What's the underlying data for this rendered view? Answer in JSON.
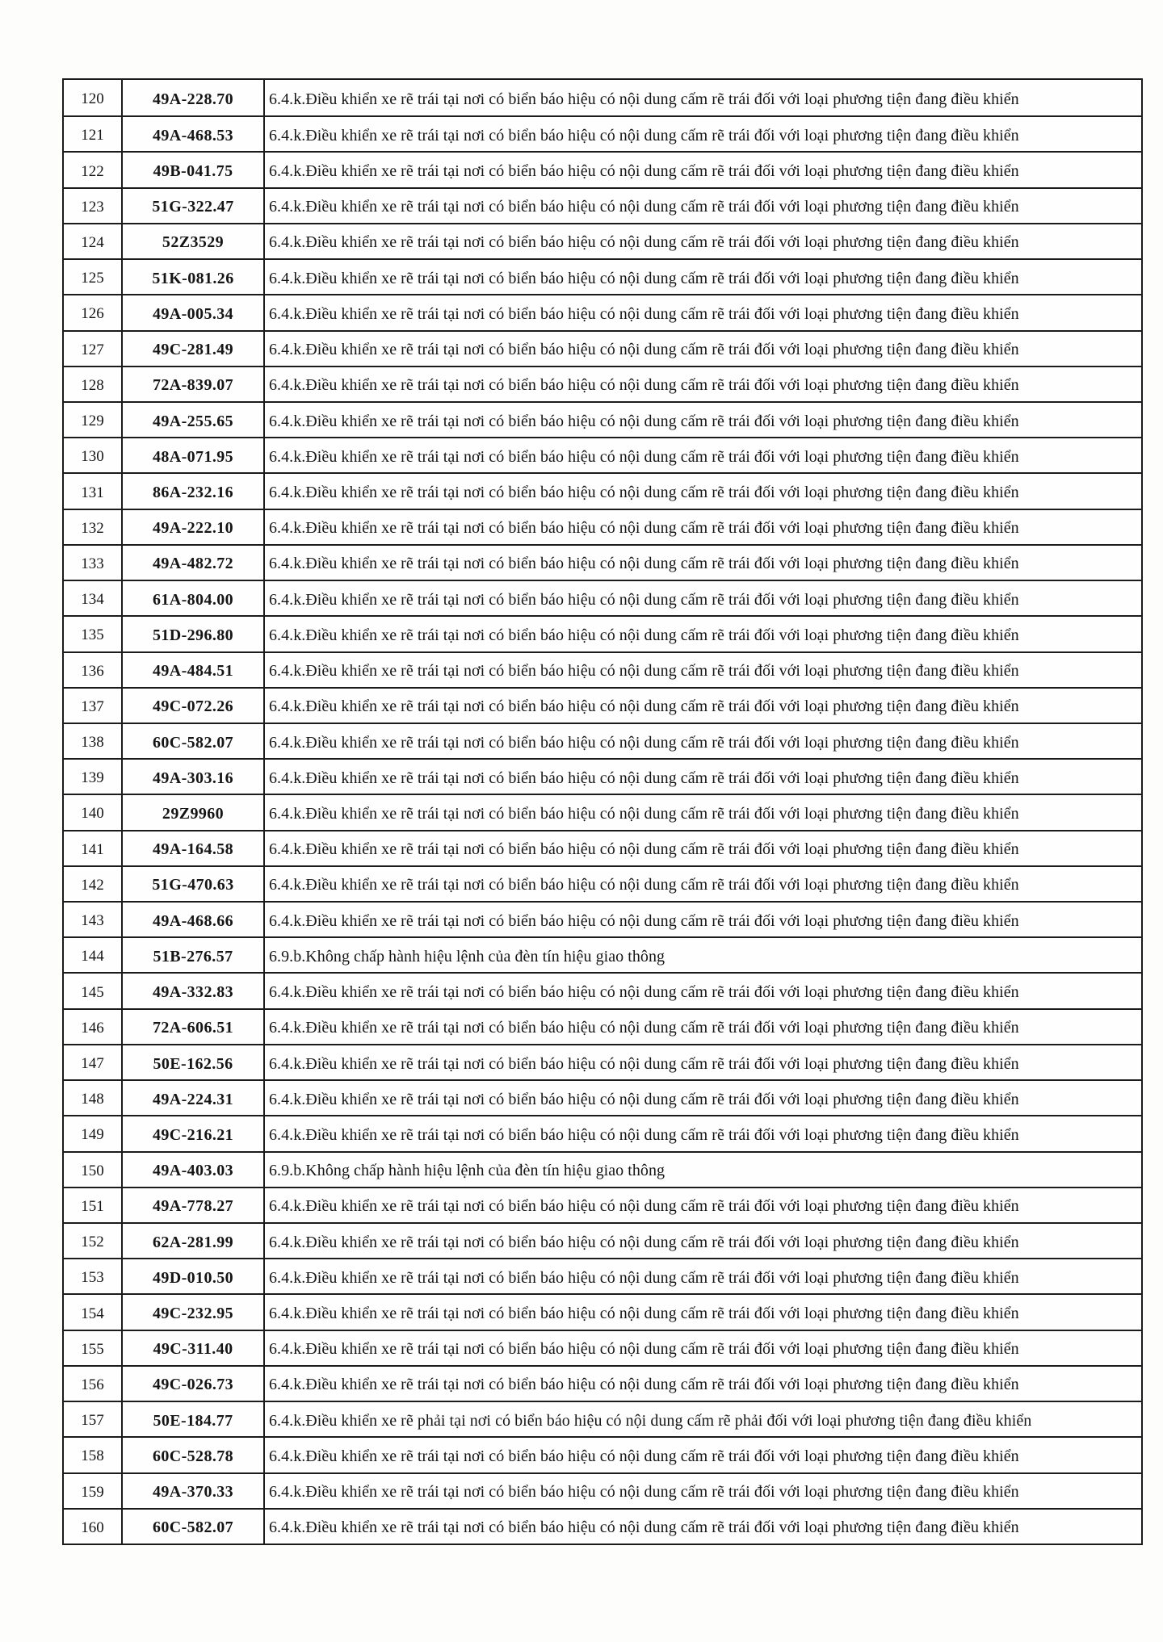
{
  "table": {
    "rows": [
      {
        "no": "120",
        "plate": "49A-228.70",
        "violation": "6.4.k.Điều khiển xe rẽ trái tại nơi có biển báo hiệu có nội dung cấm rẽ trái đối với loại phương tiện đang điều khiển"
      },
      {
        "no": "121",
        "plate": "49A-468.53",
        "violation": "6.4.k.Điều khiển xe rẽ trái tại nơi có biển báo hiệu có nội dung cấm rẽ trái đối với loại phương tiện đang điều khiển"
      },
      {
        "no": "122",
        "plate": "49B-041.75",
        "violation": "6.4.k.Điều khiển xe rẽ trái tại nơi có biển báo hiệu có nội dung cấm rẽ trái đối với loại phương tiện đang điều khiển"
      },
      {
        "no": "123",
        "plate": "51G-322.47",
        "violation": "6.4.k.Điều khiển xe rẽ trái tại nơi có biển báo hiệu có nội dung cấm rẽ trái đối với loại phương tiện đang điều khiển"
      },
      {
        "no": "124",
        "plate": "52Z3529",
        "violation": "6.4.k.Điều khiển xe rẽ trái tại nơi có biển báo hiệu có nội dung cấm rẽ trái đối với loại phương tiện đang điều khiển"
      },
      {
        "no": "125",
        "plate": "51K-081.26",
        "violation": "6.4.k.Điều khiển xe rẽ trái tại nơi có biển báo hiệu có nội dung cấm rẽ trái đối với loại phương tiện đang điều khiển"
      },
      {
        "no": "126",
        "plate": "49A-005.34",
        "violation": "6.4.k.Điều khiển xe rẽ trái tại nơi có biển báo hiệu có nội dung cấm rẽ trái đối với loại phương tiện đang điều khiển"
      },
      {
        "no": "127",
        "plate": "49C-281.49",
        "violation": "6.4.k.Điều khiển xe rẽ trái tại nơi có biển báo hiệu có nội dung cấm rẽ trái đối với loại phương tiện đang điều khiển"
      },
      {
        "no": "128",
        "plate": "72A-839.07",
        "violation": "6.4.k.Điều khiển xe rẽ trái tại nơi có biển báo hiệu có nội dung cấm rẽ trái đối với loại phương tiện đang điều khiển"
      },
      {
        "no": "129",
        "plate": "49A-255.65",
        "violation": "6.4.k.Điều khiển xe rẽ trái tại nơi có biển báo hiệu có nội dung cấm rẽ trái đối với loại phương tiện đang điều khiển"
      },
      {
        "no": "130",
        "plate": "48A-071.95",
        "violation": "6.4.k.Điều khiển xe rẽ trái tại nơi có biển báo hiệu có nội dung cấm rẽ trái đối với loại phương tiện đang điều khiển"
      },
      {
        "no": "131",
        "plate": "86A-232.16",
        "violation": "6.4.k.Điều khiển xe rẽ trái tại nơi có biển báo hiệu có nội dung cấm rẽ trái đối với loại phương tiện đang điều khiển"
      },
      {
        "no": "132",
        "plate": "49A-222.10",
        "violation": "6.4.k.Điều khiển xe rẽ trái tại nơi có biển báo hiệu có nội dung cấm rẽ trái đối với loại phương tiện đang điều khiển"
      },
      {
        "no": "133",
        "plate": "49A-482.72",
        "violation": "6.4.k.Điều khiển xe rẽ trái tại nơi có biển báo hiệu có nội dung cấm rẽ trái đối với loại phương tiện đang điều khiển"
      },
      {
        "no": "134",
        "plate": "61A-804.00",
        "violation": "6.4.k.Điều khiển xe rẽ trái tại nơi có biển báo hiệu có nội dung cấm rẽ trái đối với loại phương tiện đang điều khiển"
      },
      {
        "no": "135",
        "plate": "51D-296.80",
        "violation": "6.4.k.Điều khiển xe rẽ trái tại nơi có biển báo hiệu có nội dung cấm rẽ trái đối với loại phương tiện đang điều khiển"
      },
      {
        "no": "136",
        "plate": "49A-484.51",
        "violation": "6.4.k.Điều khiển xe rẽ trái tại nơi có biển báo hiệu có nội dung cấm rẽ trái đối với loại phương tiện đang điều khiển"
      },
      {
        "no": "137",
        "plate": "49C-072.26",
        "violation": "6.4.k.Điều khiển xe rẽ trái tại nơi có biển báo hiệu có nội dung cấm rẽ trái đối với loại phương tiện đang điều khiển"
      },
      {
        "no": "138",
        "plate": "60C-582.07",
        "violation": "6.4.k.Điều khiển xe rẽ trái tại nơi có biển báo hiệu có nội dung cấm rẽ trái đối với loại phương tiện đang điều khiển"
      },
      {
        "no": "139",
        "plate": "49A-303.16",
        "violation": "6.4.k.Điều khiển xe rẽ trái tại nơi có biển báo hiệu có nội dung cấm rẽ trái đối với loại phương tiện đang điều khiển"
      },
      {
        "no": "140",
        "plate": "29Z9960",
        "violation": "6.4.k.Điều khiển xe rẽ trái tại nơi có biển báo hiệu có nội dung cấm rẽ trái đối với loại phương tiện đang điều khiển"
      },
      {
        "no": "141",
        "plate": "49A-164.58",
        "violation": "6.4.k.Điều khiển xe rẽ trái tại nơi có biển báo hiệu có nội dung cấm rẽ trái đối với loại phương tiện đang điều khiển"
      },
      {
        "no": "142",
        "plate": "51G-470.63",
        "violation": "6.4.k.Điều khiển xe rẽ trái tại nơi có biển báo hiệu có nội dung cấm rẽ trái đối với loại phương tiện đang điều khiển"
      },
      {
        "no": "143",
        "plate": "49A-468.66",
        "violation": "6.4.k.Điều khiển xe rẽ trái tại nơi có biển báo hiệu có nội dung cấm rẽ trái đối với loại phương tiện đang điều khiển"
      },
      {
        "no": "144",
        "plate": "51B-276.57",
        "violation": "6.9.b.Không chấp hành hiệu lệnh của đèn tín hiệu giao thông"
      },
      {
        "no": "145",
        "plate": "49A-332.83",
        "violation": "6.4.k.Điều khiển xe rẽ trái tại nơi có biển báo hiệu có nội dung cấm rẽ trái đối với loại phương tiện đang điều khiển"
      },
      {
        "no": "146",
        "plate": "72A-606.51",
        "violation": "6.4.k.Điều khiển xe rẽ trái tại nơi có biển báo hiệu có nội dung cấm rẽ trái đối với loại phương tiện đang điều khiển"
      },
      {
        "no": "147",
        "plate": "50E-162.56",
        "violation": "6.4.k.Điều khiển xe rẽ trái tại nơi có biển báo hiệu có nội dung cấm rẽ trái đối với loại phương tiện đang điều khiển"
      },
      {
        "no": "148",
        "plate": "49A-224.31",
        "violation": "6.4.k.Điều khiển xe rẽ trái tại nơi có biển báo hiệu có nội dung cấm rẽ trái đối với loại phương tiện đang điều khiển"
      },
      {
        "no": "149",
        "plate": "49C-216.21",
        "violation": "6.4.k.Điều khiển xe rẽ trái tại nơi có biển báo hiệu có nội dung cấm rẽ trái đối với loại phương tiện đang điều khiển"
      },
      {
        "no": "150",
        "plate": "49A-403.03",
        "violation": "6.9.b.Không chấp hành hiệu lệnh của đèn tín hiệu giao thông"
      },
      {
        "no": "151",
        "plate": "49A-778.27",
        "violation": "6.4.k.Điều khiển xe rẽ trái tại nơi có biển báo hiệu có nội dung cấm rẽ trái đối với loại phương tiện đang điều khiển"
      },
      {
        "no": "152",
        "plate": "62A-281.99",
        "violation": "6.4.k.Điều khiển xe rẽ trái tại nơi có biển báo hiệu có nội dung cấm rẽ trái đối với loại phương tiện đang điều khiển"
      },
      {
        "no": "153",
        "plate": "49D-010.50",
        "violation": "6.4.k.Điều khiển xe rẽ trái tại nơi có biển báo hiệu có nội dung cấm rẽ trái đối với loại phương tiện đang điều khiển"
      },
      {
        "no": "154",
        "plate": "49C-232.95",
        "violation": "6.4.k.Điều khiển xe rẽ trái tại nơi có biển báo hiệu có nội dung cấm rẽ trái đối với loại phương tiện đang điều khiển"
      },
      {
        "no": "155",
        "plate": "49C-311.40",
        "violation": "6.4.k.Điều khiển xe rẽ trái tại nơi có biển báo hiệu có nội dung cấm rẽ trái đối với loại phương tiện đang điều khiển"
      },
      {
        "no": "156",
        "plate": "49C-026.73",
        "violation": "6.4.k.Điều khiển xe rẽ trái tại nơi có biển báo hiệu có nội dung cấm rẽ trái đối với loại phương tiện đang điều khiển"
      },
      {
        "no": "157",
        "plate": "50E-184.77",
        "violation": "6.4.k.Điều khiển xe rẽ phải tại nơi có biển báo hiệu có nội dung cấm rẽ phải đối với loại phương tiện đang điều khiển"
      },
      {
        "no": "158",
        "plate": "60C-528.78",
        "violation": "6.4.k.Điều khiển xe rẽ trái tại nơi có biển báo hiệu có nội dung cấm rẽ trái đối với loại phương tiện đang điều khiển"
      },
      {
        "no": "159",
        "plate": "49A-370.33",
        "violation": "6.4.k.Điều khiển xe rẽ trái tại nơi có biển báo hiệu có nội dung cấm rẽ trái đối với loại phương tiện đang điều khiển"
      },
      {
        "no": "160",
        "plate": "60C-582.07",
        "violation": "6.4.k.Điều khiển xe rẽ trái tại nơi có biển báo hiệu có nội dung cấm rẽ trái đối với loại phương tiện đang điều khiển"
      }
    ]
  }
}
